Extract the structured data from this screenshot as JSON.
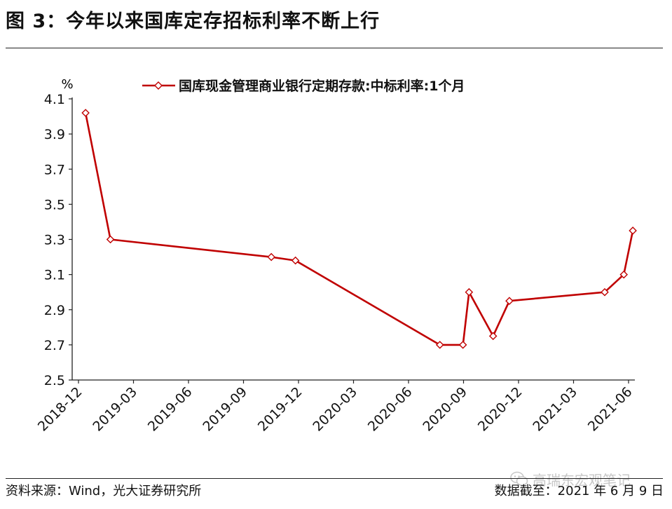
{
  "figure": {
    "title": "图 3：今年以来国库定存招标利率不断上行",
    "source": "资料来源：Wind，光大证券研究所",
    "date_note": "数据截至：2021 年 6 月 9 日",
    "watermark": "高瑞东宏观笔记",
    "watermark_icon": "wechat-icon"
  },
  "chart_data": {
    "type": "line",
    "unit": "%",
    "legend": "国库现金管理商业银行定期存款:中标利率:1个月",
    "legend_position": "top",
    "series_color": "#c00000",
    "grid": false,
    "x_ticks": [
      "2018-12",
      "2019-03",
      "2019-06",
      "2019-09",
      "2019-12",
      "2020-03",
      "2020-06",
      "2020-09",
      "2020-12",
      "2021-03",
      "2021-06"
    ],
    "y_ticks": [
      "2.5",
      "2.7",
      "2.9",
      "3.1",
      "3.3",
      "3.5",
      "3.7",
      "3.9",
      "4.1"
    ],
    "ylim": [
      2.5,
      4.1
    ],
    "series": [
      {
        "name": "国库现金管理商业银行定期存款:中标利率:1个月",
        "points": [
          {
            "x": "2018-12-13",
            "y": 4.02
          },
          {
            "x": "2019-01-24",
            "y": 3.3
          },
          {
            "x": "2019-10-17",
            "y": 3.2
          },
          {
            "x": "2019-11-26",
            "y": 3.18
          },
          {
            "x": "2020-07-23",
            "y": 2.7
          },
          {
            "x": "2020-08-31",
            "y": 2.7
          },
          {
            "x": "2020-09-10",
            "y": 3.0
          },
          {
            "x": "2020-10-20",
            "y": 2.75
          },
          {
            "x": "2020-11-16",
            "y": 2.95
          },
          {
            "x": "2021-04-22",
            "y": 3.0
          },
          {
            "x": "2021-05-24",
            "y": 3.1
          },
          {
            "x": "2021-06-08",
            "y": 3.35
          }
        ]
      }
    ]
  }
}
